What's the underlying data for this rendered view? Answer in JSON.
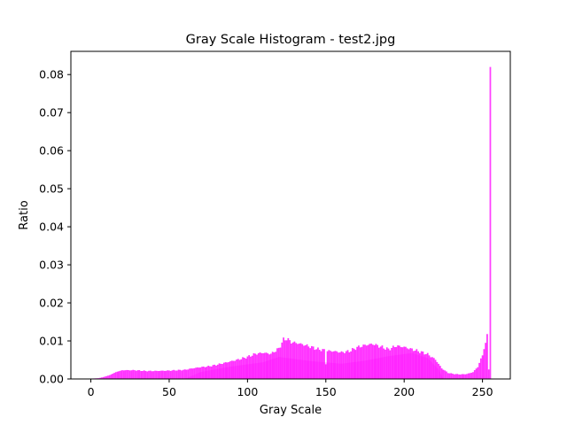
{
  "chart_data": {
    "type": "bar",
    "title": "Gray Scale Histogram - test2.jpg",
    "xlabel": "Gray Scale",
    "ylabel": "Ratio",
    "xlim": [
      -12.75,
      267.75
    ],
    "ylim": [
      0,
      0.0861
    ],
    "xticks": [
      0,
      50,
      100,
      150,
      200,
      250
    ],
    "yticks": [
      0.0,
      0.01,
      0.02,
      0.03,
      0.04,
      0.05,
      0.06,
      0.07,
      0.08
    ],
    "ytick_labels": [
      "0.00",
      "0.01",
      "0.02",
      "0.03",
      "0.04",
      "0.05",
      "0.06",
      "0.07",
      "0.08"
    ],
    "grid": false,
    "legend": "none",
    "bar_color": "#ff00ff",
    "bins_start": 0,
    "bins_step": 1,
    "envelope": [
      [
        0,
        0.0001
      ],
      [
        5,
        0.0002
      ],
      [
        8,
        0.0005
      ],
      [
        12,
        0.001
      ],
      [
        16,
        0.0018
      ],
      [
        20,
        0.0023
      ],
      [
        28,
        0.0023
      ],
      [
        35,
        0.0021
      ],
      [
        40,
        0.0021
      ],
      [
        50,
        0.0022
      ],
      [
        60,
        0.0024
      ],
      [
        65,
        0.0028
      ],
      [
        70,
        0.0031
      ],
      [
        75,
        0.0033
      ],
      [
        80,
        0.0037
      ],
      [
        88,
        0.0045
      ],
      [
        95,
        0.0052
      ],
      [
        100,
        0.0058
      ],
      [
        105,
        0.0066
      ],
      [
        110,
        0.0069
      ],
      [
        115,
        0.0066
      ],
      [
        120,
        0.008
      ],
      [
        123,
        0.0103
      ],
      [
        125,
        0.0106
      ],
      [
        128,
        0.0097
      ],
      [
        132,
        0.0094
      ],
      [
        136,
        0.009
      ],
      [
        140,
        0.0085
      ],
      [
        145,
        0.0078
      ],
      [
        149,
        0.0076
      ],
      [
        150,
        0.004
      ],
      [
        151,
        0.0074
      ],
      [
        155,
        0.0073
      ],
      [
        160,
        0.007
      ],
      [
        165,
        0.0073
      ],
      [
        170,
        0.0083
      ],
      [
        175,
        0.0089
      ],
      [
        180,
        0.0092
      ],
      [
        185,
        0.0085
      ],
      [
        190,
        0.0078
      ],
      [
        195,
        0.0087
      ],
      [
        200,
        0.0084
      ],
      [
        205,
        0.0078
      ],
      [
        210,
        0.0072
      ],
      [
        215,
        0.0065
      ],
      [
        220,
        0.0051
      ],
      [
        224,
        0.0028
      ],
      [
        228,
        0.0016
      ],
      [
        232,
        0.0013
      ],
      [
        236,
        0.0012
      ],
      [
        240,
        0.0013
      ],
      [
        244,
        0.0018
      ],
      [
        247,
        0.0032
      ],
      [
        250,
        0.0062
      ],
      [
        252,
        0.0095
      ],
      [
        253,
        0.0118
      ],
      [
        254,
        0.0025
      ],
      [
        255,
        0.082
      ]
    ],
    "overlay_envelope": [
      [
        40,
        0.0
      ],
      [
        60,
        0.0
      ],
      [
        70,
        0.0018
      ],
      [
        90,
        0.0033
      ],
      [
        110,
        0.0044
      ],
      [
        120,
        0.0058
      ],
      [
        140,
        0.0047
      ],
      [
        160,
        0.004
      ],
      [
        175,
        0.0048
      ],
      [
        190,
        0.006
      ],
      [
        205,
        0.0068
      ],
      [
        215,
        0.0055
      ],
      [
        222,
        0.0025
      ],
      [
        225,
        0.0
      ]
    ]
  }
}
